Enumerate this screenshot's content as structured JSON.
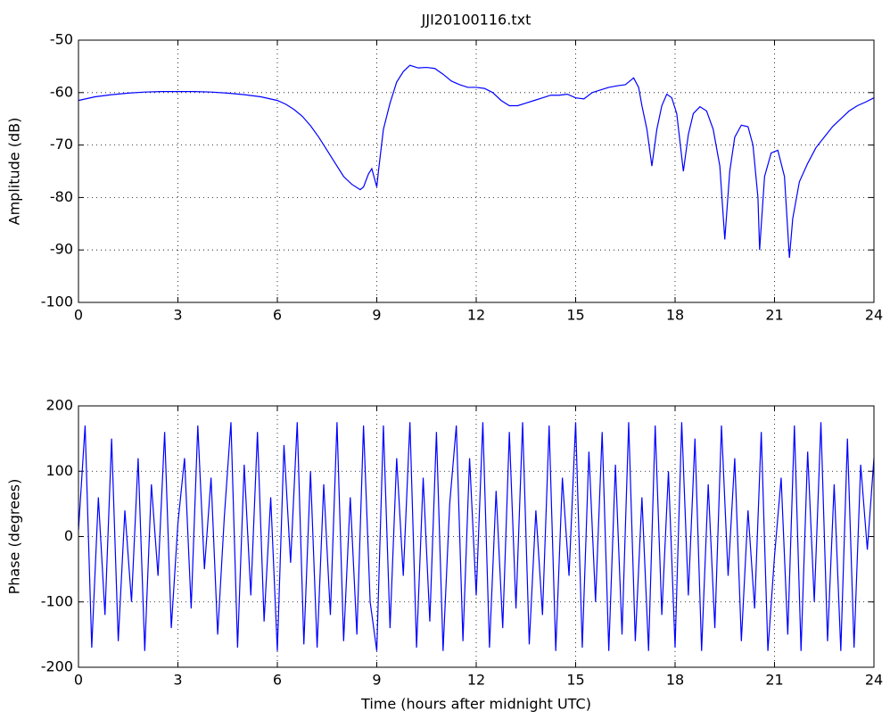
{
  "chart_data": [
    {
      "type": "line",
      "title": "JJI20100116.txt",
      "ylabel": "Amplitude (dB)",
      "grid": true,
      "xlim": [
        0,
        24
      ],
      "xticks": [
        0,
        3,
        6,
        9,
        12,
        15,
        18,
        21,
        24
      ],
      "ylim": [
        -100,
        -50
      ],
      "yticks": [
        -100,
        -90,
        -80,
        -70,
        -60,
        -50
      ],
      "x": [
        0,
        0.5,
        1,
        1.5,
        2,
        2.5,
        3,
        3.5,
        4,
        4.5,
        5,
        5.5,
        6,
        6.25,
        6.5,
        6.75,
        7,
        7.25,
        7.5,
        7.75,
        8,
        8.25,
        8.5,
        8.6,
        8.75,
        8.85,
        9,
        9.05,
        9.2,
        9.4,
        9.6,
        9.8,
        10,
        10.25,
        10.5,
        10.75,
        11,
        11.25,
        11.5,
        11.75,
        12,
        12.25,
        12.5,
        12.75,
        13,
        13.25,
        13.5,
        13.75,
        14,
        14.25,
        14.5,
        14.75,
        15,
        15.25,
        15.5,
        15.75,
        16,
        16.25,
        16.5,
        16.75,
        16.9,
        17,
        17.15,
        17.3,
        17.45,
        17.6,
        17.75,
        17.9,
        18.05,
        18.25,
        18.4,
        18.55,
        18.75,
        18.95,
        19.15,
        19.35,
        19.5,
        19.65,
        19.8,
        20,
        20.2,
        20.35,
        20.5,
        20.55,
        20.7,
        20.9,
        21.1,
        21.3,
        21.45,
        21.55,
        21.75,
        22,
        22.25,
        22.5,
        22.75,
        23,
        23.25,
        23.5,
        23.75,
        24
      ],
      "series": [
        {
          "color": "#0000ff",
          "values": [
            -61.5,
            -60.8,
            -60.4,
            -60.1,
            -59.9,
            -59.8,
            -59.8,
            -59.8,
            -59.9,
            -60.1,
            -60.4,
            -60.8,
            -61.5,
            -62.2,
            -63.2,
            -64.5,
            -66.3,
            -68.5,
            -71,
            -73.5,
            -76,
            -77.5,
            -78.5,
            -78,
            -75.5,
            -74.5,
            -78,
            -75,
            -67,
            -62,
            -58,
            -56,
            -54.8,
            -55.3,
            -55.2,
            -55.4,
            -56.5,
            -57.8,
            -58.5,
            -59,
            -59,
            -59.2,
            -60,
            -61.5,
            -62.5,
            -62.5,
            -62,
            -61.5,
            -61,
            -60.5,
            -60.5,
            -60.3,
            -61,
            -61.2,
            -60,
            -59.5,
            -59,
            -58.7,
            -58.5,
            -57.2,
            -59,
            -62.5,
            -67,
            -74,
            -67,
            -62.5,
            -60.3,
            -61,
            -64,
            -75,
            -68,
            -64,
            -62.7,
            -63.5,
            -67,
            -74,
            -88,
            -75,
            -68.5,
            -66.2,
            -66.5,
            -70,
            -80,
            -90,
            -76,
            -71.5,
            -71,
            -76,
            -91.5,
            -84,
            -77,
            -73.5,
            -70.5,
            -68.5,
            -66.5,
            -65,
            -63.5,
            -62.5,
            -61.8,
            -61
          ]
        }
      ]
    },
    {
      "type": "line",
      "xlabel": "Time (hours after midnight UTC)",
      "ylabel": "Phase (degrees)",
      "grid": true,
      "xlim": [
        0,
        24
      ],
      "xticks": [
        0,
        3,
        6,
        9,
        12,
        15,
        18,
        21,
        24
      ],
      "ylim": [
        -200,
        200
      ],
      "yticks": [
        -200,
        -100,
        0,
        100,
        200
      ],
      "x": [
        0,
        0.2,
        0.4,
        0.6,
        0.8,
        1,
        1.2,
        1.4,
        1.6,
        1.8,
        2,
        2.2,
        2.4,
        2.6,
        2.8,
        3,
        3.2,
        3.4,
        3.6,
        3.8,
        4,
        4.2,
        4.4,
        4.6,
        4.8,
        5,
        5.2,
        5.4,
        5.6,
        5.8,
        6,
        6.2,
        6.4,
        6.6,
        6.8,
        7,
        7.2,
        7.4,
        7.6,
        7.8,
        8,
        8.2,
        8.4,
        8.6,
        8.8,
        9,
        9.2,
        9.4,
        9.6,
        9.8,
        10,
        10.2,
        10.4,
        10.6,
        10.8,
        11,
        11.2,
        11.4,
        11.6,
        11.8,
        12,
        12.2,
        12.4,
        12.6,
        12.8,
        13,
        13.2,
        13.4,
        13.6,
        13.8,
        14,
        14.2,
        14.4,
        14.6,
        14.8,
        15,
        15.2,
        15.4,
        15.6,
        15.8,
        16,
        16.2,
        16.4,
        16.6,
        16.8,
        17,
        17.2,
        17.4,
        17.6,
        17.8,
        18,
        18.2,
        18.4,
        18.6,
        18.8,
        19,
        19.2,
        19.4,
        19.6,
        19.8,
        20,
        20.2,
        20.4,
        20.6,
        20.8,
        21,
        21.2,
        21.4,
        21.6,
        21.8,
        22,
        22.2,
        22.4,
        22.6,
        22.8,
        23,
        23.2,
        23.4,
        23.6,
        23.8,
        24
      ],
      "series": [
        {
          "color": "#0000ff",
          "values": [
            10,
            170,
            -170,
            60,
            -120,
            150,
            -160,
            40,
            -100,
            120,
            -175,
            80,
            -60,
            160,
            -140,
            20,
            120,
            -110,
            170,
            -50,
            90,
            -150,
            30,
            175,
            -170,
            110,
            -90,
            160,
            -130,
            60,
            -175,
            140,
            -40,
            175,
            -165,
            100,
            -170,
            80,
            -120,
            175,
            -160,
            60,
            -150,
            170,
            -100,
            -175,
            170,
            -140,
            120,
            -60,
            175,
            -170,
            90,
            -130,
            160,
            -175,
            50,
            170,
            -160,
            120,
            -90,
            175,
            -170,
            70,
            -140,
            160,
            -110,
            175,
            -165,
            40,
            -120,
            170,
            -175,
            90,
            -60,
            175,
            -170,
            130,
            -100,
            160,
            -175,
            110,
            -150,
            175,
            -160,
            60,
            -175,
            170,
            -120,
            100,
            -170,
            175,
            -90,
            150,
            -175,
            80,
            -140,
            170,
            -60,
            120,
            -160,
            40,
            -110,
            160,
            -175,
            -30,
            90,
            -150,
            170,
            -175,
            130,
            -100,
            175,
            -160,
            80,
            -175,
            150,
            -170,
            110,
            -20,
            120
          ]
        }
      ]
    }
  ]
}
